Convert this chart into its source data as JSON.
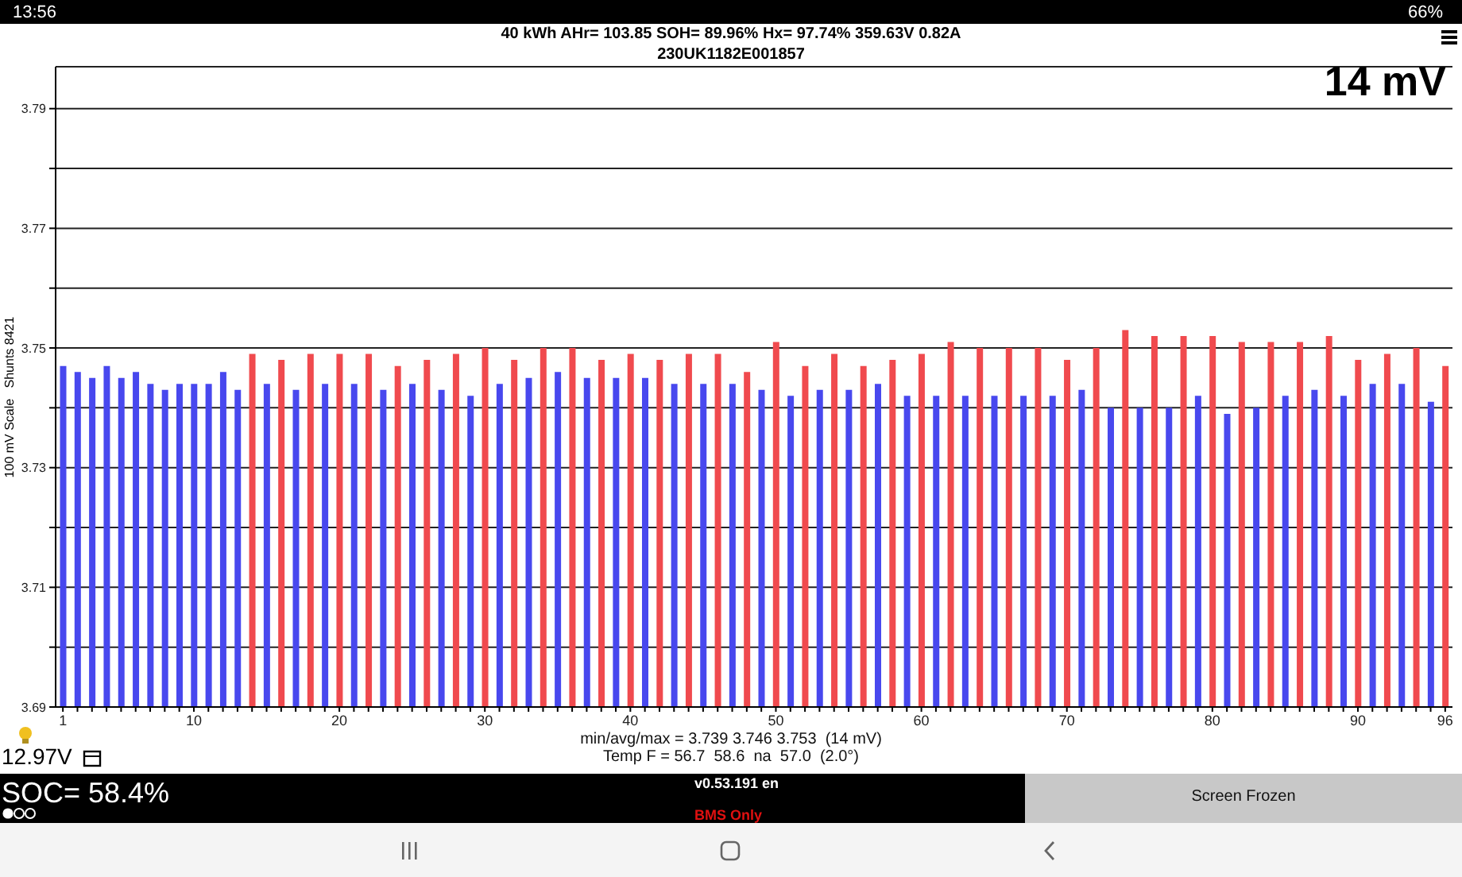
{
  "chart_data": {
    "type": "bar",
    "title": "40 kWh  AHr= 103.85  SOH= 89.96%  Hx= 97.74%  359.63V 0.82A",
    "subtitle": "230UK1182E001857",
    "ylabel": "100 mV Scale   Shunts 8421",
    "categories": [
      "1",
      null,
      null,
      null,
      null,
      null,
      null,
      null,
      null,
      "10",
      null,
      null,
      null,
      null,
      null,
      null,
      null,
      null,
      null,
      "20",
      null,
      null,
      null,
      null,
      null,
      null,
      null,
      null,
      null,
      "30",
      null,
      null,
      null,
      null,
      null,
      null,
      null,
      null,
      null,
      "40",
      null,
      null,
      null,
      null,
      null,
      null,
      null,
      null,
      null,
      "50",
      null,
      null,
      null,
      null,
      null,
      null,
      null,
      null,
      null,
      "60",
      null,
      null,
      null,
      null,
      null,
      null,
      null,
      null,
      null,
      "70",
      null,
      null,
      null,
      null,
      null,
      null,
      null,
      null,
      null,
      "80",
      null,
      null,
      null,
      null,
      null,
      null,
      null,
      null,
      null,
      "90",
      null,
      null,
      null,
      null,
      null,
      "96"
    ],
    "values": [
      3.747,
      3.746,
      3.745,
      3.747,
      3.745,
      3.746,
      3.744,
      3.743,
      3.744,
      3.744,
      3.744,
      3.746,
      3.743,
      3.749,
      3.744,
      3.748,
      3.743,
      3.749,
      3.744,
      3.749,
      3.744,
      3.749,
      3.743,
      3.747,
      3.744,
      3.748,
      3.743,
      3.749,
      3.742,
      3.75,
      3.744,
      3.748,
      3.745,
      3.75,
      3.746,
      3.75,
      3.745,
      3.748,
      3.745,
      3.749,
      3.745,
      3.748,
      3.744,
      3.749,
      3.744,
      3.749,
      3.744,
      3.746,
      3.743,
      3.751,
      3.742,
      3.747,
      3.743,
      3.749,
      3.743,
      3.747,
      3.744,
      3.748,
      3.742,
      3.749,
      3.742,
      3.751,
      3.742,
      3.75,
      3.742,
      3.75,
      3.742,
      3.75,
      3.742,
      3.748,
      3.743,
      3.75,
      3.74,
      3.753,
      3.74,
      3.752,
      3.74,
      3.752,
      3.742,
      3.752,
      3.739,
      3.751,
      3.74,
      3.751,
      3.742,
      3.751,
      3.743,
      3.752,
      3.742,
      3.748,
      3.744,
      3.749,
      3.744,
      3.75,
      3.741,
      3.747
    ],
    "colors": [
      "#4848ee",
      "#4848ee",
      "#4848ee",
      "#4848ee",
      "#4848ee",
      "#4848ee",
      "#4848ee",
      "#4848ee",
      "#4848ee",
      "#4848ee",
      "#4848ee",
      "#4848ee",
      "#4848ee",
      "#f04a4e",
      "#4848ee",
      "#f04a4e",
      "#4848ee",
      "#f04a4e",
      "#4848ee",
      "#f04a4e",
      "#4848ee",
      "#f04a4e",
      "#4848ee",
      "#f04a4e",
      "#4848ee",
      "#f04a4e",
      "#4848ee",
      "#f04a4e",
      "#4848ee",
      "#f04a4e",
      "#4848ee",
      "#f04a4e",
      "#4848ee",
      "#f04a4e",
      "#4848ee",
      "#f04a4e",
      "#4848ee",
      "#f04a4e",
      "#4848ee",
      "#f04a4e",
      "#4848ee",
      "#f04a4e",
      "#4848ee",
      "#f04a4e",
      "#4848ee",
      "#f04a4e",
      "#4848ee",
      "#f04a4e",
      "#4848ee",
      "#f04a4e",
      "#4848ee",
      "#f04a4e",
      "#4848ee",
      "#f04a4e",
      "#4848ee",
      "#f04a4e",
      "#4848ee",
      "#f04a4e",
      "#4848ee",
      "#f04a4e",
      "#4848ee",
      "#f04a4e",
      "#4848ee",
      "#f04a4e",
      "#4848ee",
      "#f04a4e",
      "#4848ee",
      "#f04a4e",
      "#4848ee",
      "#f04a4e",
      "#4848ee",
      "#f04a4e",
      "#4848ee",
      "#f04a4e",
      "#4848ee",
      "#f04a4e",
      "#4848ee",
      "#f04a4e",
      "#4848ee",
      "#f04a4e",
      "#4848ee",
      "#f04a4e",
      "#4848ee",
      "#f04a4e",
      "#4848ee",
      "#f04a4e",
      "#4848ee",
      "#f04a4e",
      "#4848ee",
      "#f04a4e",
      "#4848ee",
      "#f04a4e",
      "#4848ee",
      "#f04a4e",
      "#4848ee",
      "#f04a4e"
    ],
    "ylim": [
      3.69,
      3.797
    ],
    "yticks": [
      3.69,
      {
        "value": 3.7,
        "label": null
      },
      3.71,
      {
        "value": 3.72,
        "label": null
      },
      3.73,
      {
        "value": 3.74,
        "label": null
      },
      3.75,
      {
        "value": 3.76,
        "label": null
      },
      3.77,
      {
        "value": 3.78,
        "label": null
      },
      3.79
    ],
    "grid": "y",
    "annotations": [
      "14 mV",
      "min/avg/max = 3.739 3.746 3.753  (14 mV)",
      "Temp F = 56.7  58.6  na  57.0  (2.0°)",
      "12.97V",
      "SOC= 58.4%",
      "v0.53.191 en",
      "BMS Only",
      "Screen Frozen",
      "13:56",
      "66%"
    ]
  }
}
